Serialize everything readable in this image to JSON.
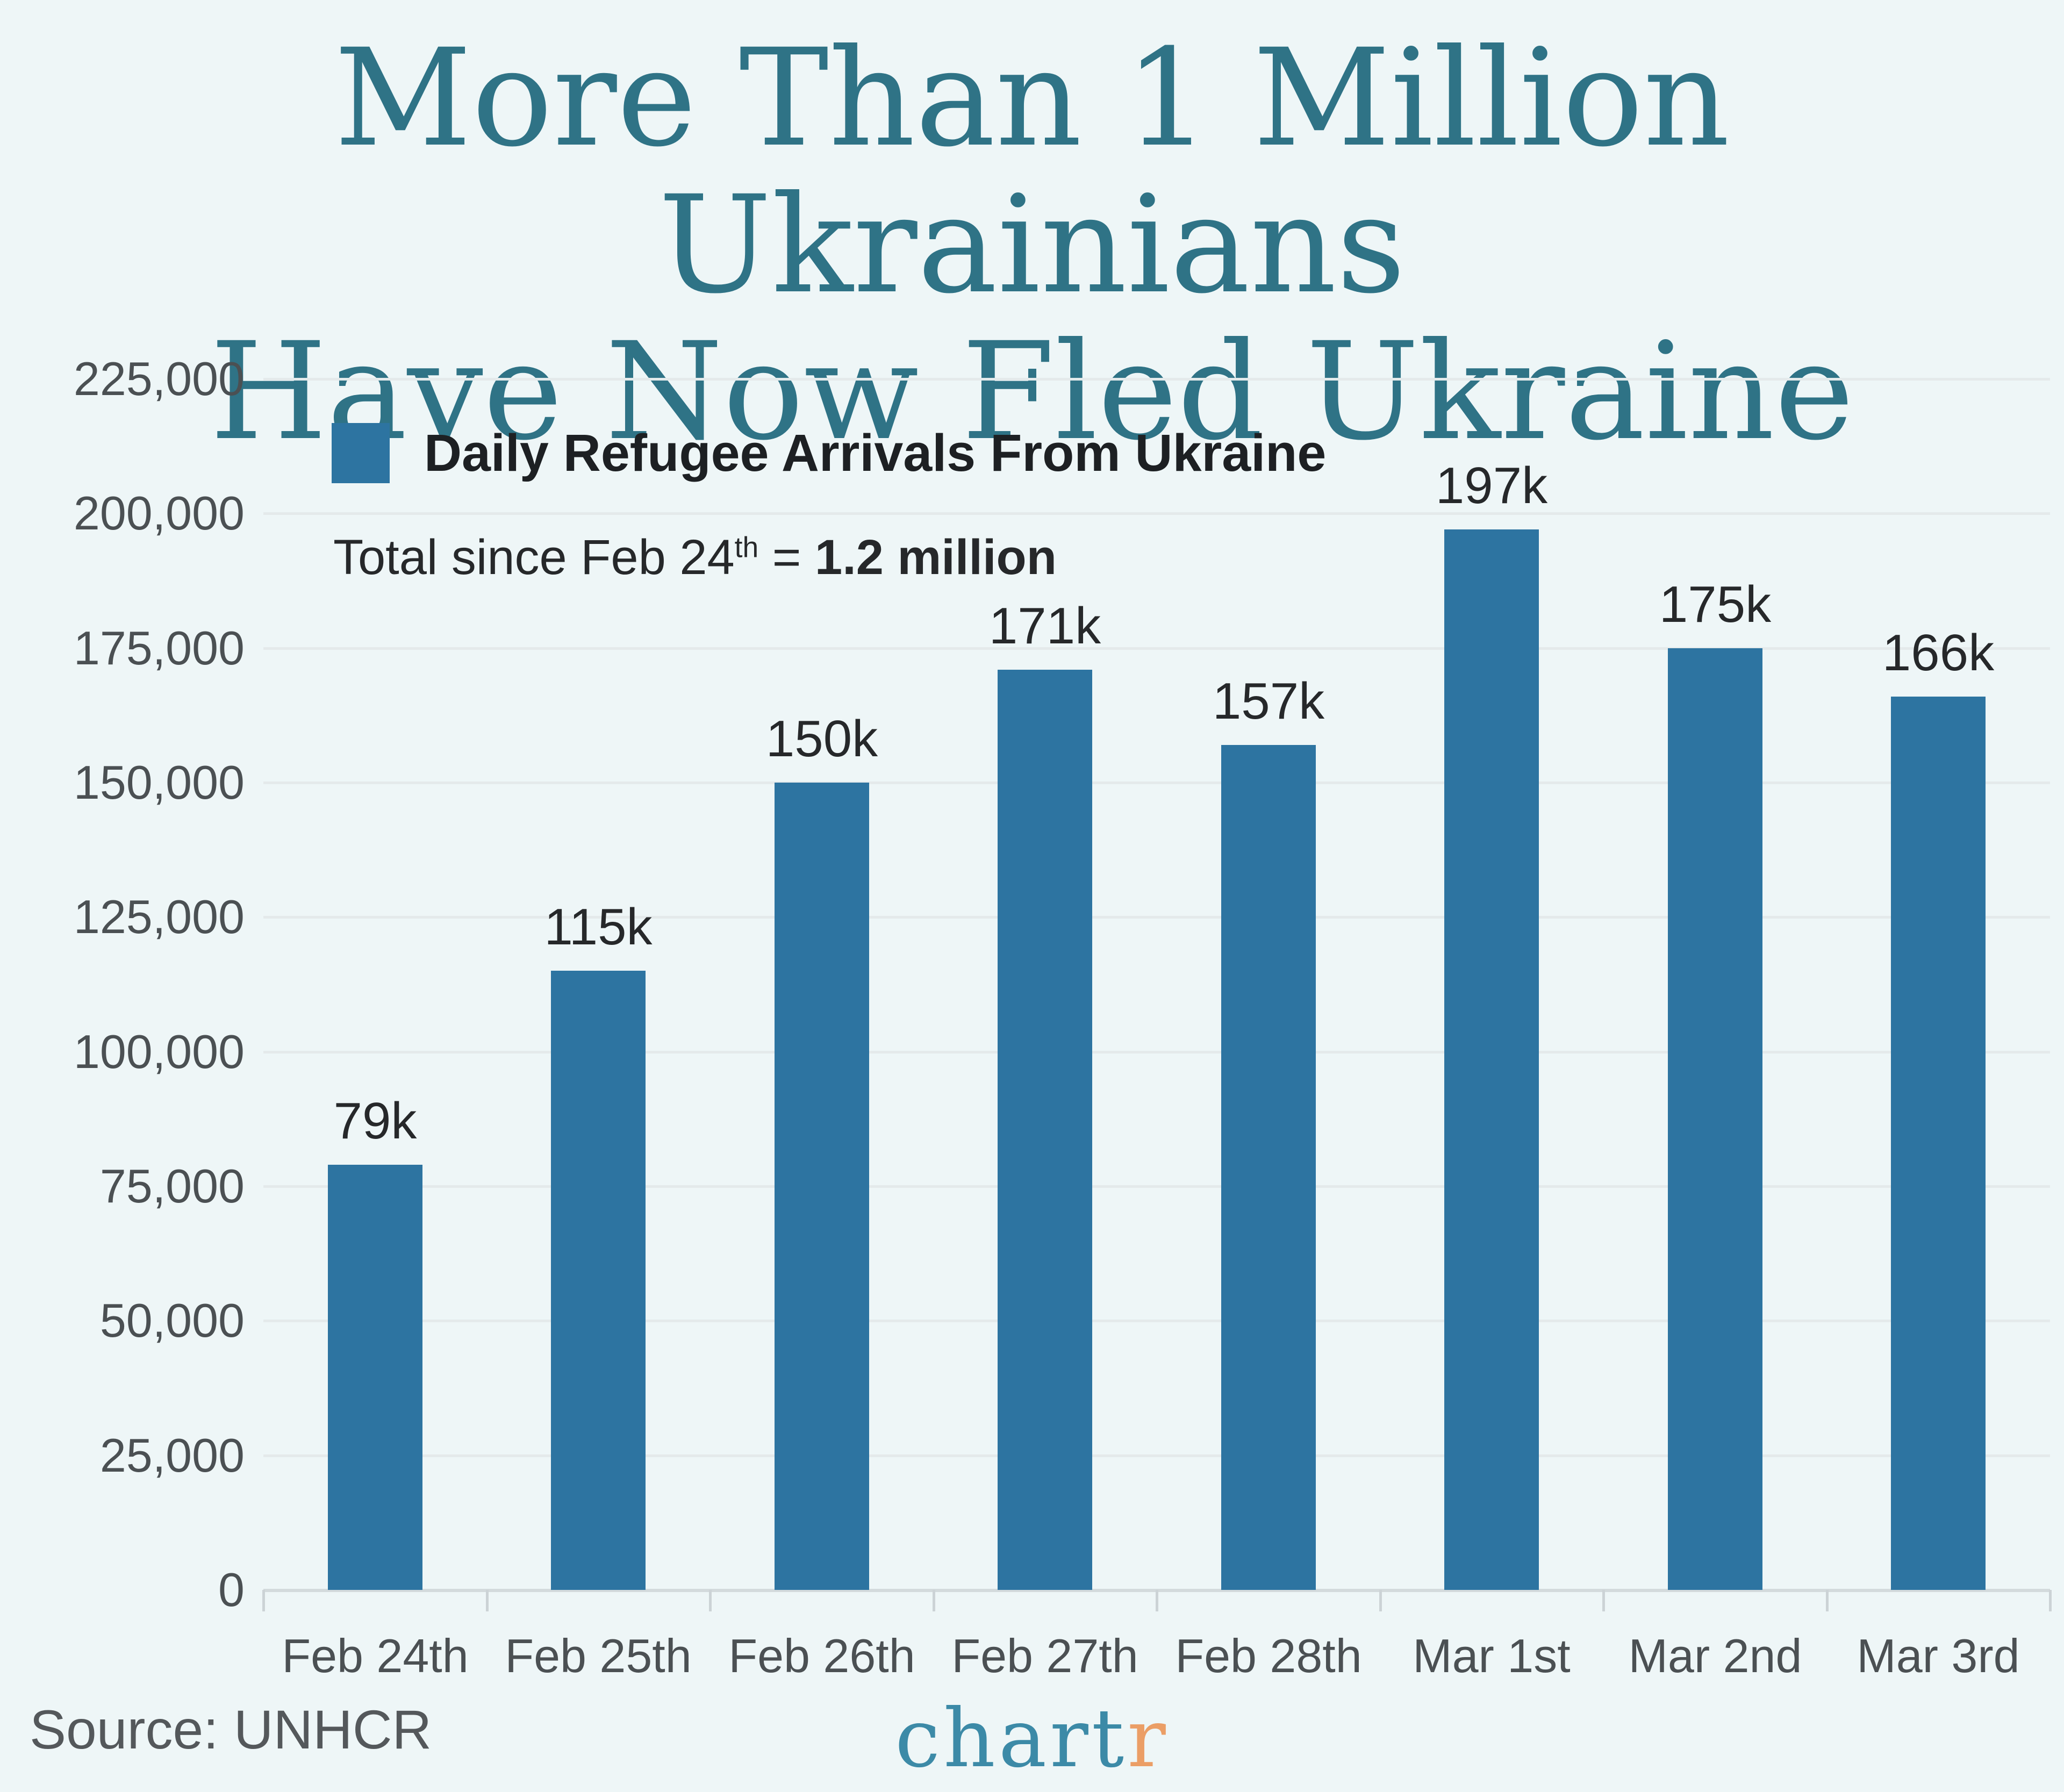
{
  "title": {
    "line1": "More Than 1 Million Ukrainians",
    "line2": "Have Now Fled Ukraine"
  },
  "legend": {
    "label": "Daily Refugee Arrivals From Ukraine"
  },
  "subtitle": {
    "prefix": "Total since Feb 24",
    "superscript": "th",
    "connector": " = ",
    "total": "1.2 million"
  },
  "source_label": "Source: UNHCR",
  "logo": {
    "part1": "chart",
    "part2": "r"
  },
  "colors": {
    "background": "#eef6f7",
    "title_teal": "#2f7386",
    "bar_blue": "#2d74a1",
    "gridline": "#e4eaeb",
    "axis_line": "#d3dadc",
    "tick": "#ccd3d6",
    "axis_label_gray": "#4b5053",
    "source_gray": "#54585b",
    "logo_teal": "#3c8aa7",
    "logo_orange": "#eb9e66"
  },
  "chart_data": {
    "type": "bar",
    "title": "More Than 1 Million Ukrainians Have Now Fled Ukraine",
    "series_name": "Daily Refugee Arrivals From Ukraine",
    "annotation": "Total since Feb 24th = 1.2 million",
    "categories": [
      "Feb 24th",
      "Feb 25th",
      "Feb 26th",
      "Feb 27th",
      "Feb 28th",
      "Mar 1st",
      "Mar 2nd",
      "Mar 3rd"
    ],
    "values": [
      79000,
      115000,
      150000,
      171000,
      157000,
      197000,
      175000,
      166000
    ],
    "bar_labels": [
      "79k",
      "115k",
      "150k",
      "171k",
      "157k",
      "197k",
      "175k",
      "166k"
    ],
    "ylim": [
      0,
      225000
    ],
    "y_tick_step": 25000,
    "y_tick_labels": [
      "225,000",
      "200,000",
      "175,000",
      "150,000",
      "125,000",
      "100,000",
      "75,000",
      "50,000",
      "25,000",
      "0"
    ],
    "grid": true,
    "legend_position": "upper-left-inside",
    "source": "UNHCR"
  }
}
